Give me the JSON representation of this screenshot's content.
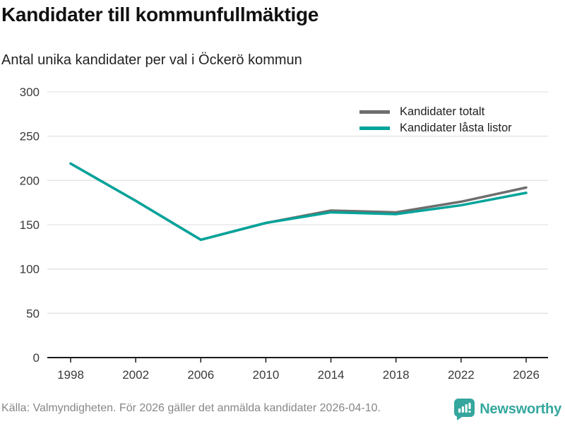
{
  "header": {
    "title": "Kandidater till kommunfullmäktige",
    "subtitle": "Antal unika kandidater per val i Öckerö kommun"
  },
  "footer": {
    "source": "Källa: Valmyndigheten. För 2026 gäller det anmälda kandidater 2026-04-10.",
    "brand": "Newsworthy"
  },
  "icons": {
    "brand": "bar-chart-speech-bubble-icon"
  },
  "colors": {
    "total_line": "#6e6e6e",
    "locked_line": "#00a49a",
    "grid": "#e3e3e3",
    "axis": "#1a1a1a",
    "tick_label": "#3a3a3a",
    "footer_text": "#878787",
    "brand_teal": "#35a79e"
  },
  "chart_data": {
    "type": "line",
    "title": "Kandidater till kommunfullmäktige",
    "subtitle": "Antal unika kandidater per val i Öckerö kommun",
    "categories": [
      "1998",
      "2002",
      "2006",
      "2010",
      "2014",
      "2018",
      "2022",
      "2026"
    ],
    "series": [
      {
        "name": "Kandidater totalt",
        "color": "#6e6e6e",
        "values": [
          219,
          177,
          133,
          152,
          166,
          164,
          176,
          192
        ]
      },
      {
        "name": "Kandidater låsta listor",
        "color": "#00a49a",
        "values": [
          219,
          177,
          133,
          152,
          164,
          162,
          172,
          186
        ]
      }
    ],
    "xlabel": "",
    "ylabel": "",
    "ylim": [
      0,
      300
    ],
    "yticks": [
      0,
      50,
      100,
      150,
      200,
      250,
      300
    ],
    "grid": true,
    "legend_position": "top-right"
  }
}
